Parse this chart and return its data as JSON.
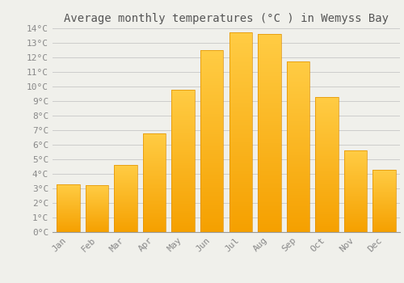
{
  "title": "Average monthly temperatures (°C ) in Wemyss Bay",
  "months": [
    "Jan",
    "Feb",
    "Mar",
    "Apr",
    "May",
    "Jun",
    "Jul",
    "Aug",
    "Sep",
    "Oct",
    "Nov",
    "Dec"
  ],
  "values": [
    3.3,
    3.2,
    4.6,
    6.8,
    9.8,
    12.5,
    13.7,
    13.6,
    11.7,
    9.3,
    5.6,
    4.3
  ],
  "bar_color_top": "#FFCC44",
  "bar_color_bottom": "#F5A000",
  "background_color": "#F0F0EB",
  "grid_color": "#CCCCCC",
  "ylim": [
    0,
    14
  ],
  "ytick_step": 1,
  "title_fontsize": 10,
  "tick_fontsize": 8,
  "font_family": "monospace"
}
